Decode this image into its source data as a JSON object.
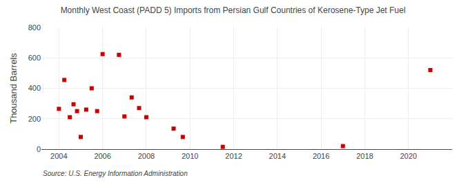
{
  "chart_data": {
    "type": "scatter",
    "title": "Monthly West Coast (PADD 5) Imports from Persian Gulf Countries of Kerosene-Type Jet Fuel",
    "ylabel": "Thousand Barrels",
    "source": "Source: U.S. Energy Information Administration",
    "x": [
      2004.0,
      2004.25,
      2004.5,
      2004.67,
      2004.83,
      2005.0,
      2005.25,
      2005.5,
      2005.75,
      2006.0,
      2006.75,
      2007.0,
      2007.33,
      2007.67,
      2008.0,
      2009.25,
      2009.67,
      2011.5,
      2017.0,
      2021.0
    ],
    "values": [
      265,
      455,
      210,
      295,
      250,
      80,
      260,
      400,
      250,
      625,
      620,
      215,
      340,
      270,
      210,
      135,
      80,
      15,
      20,
      520
    ],
    "color": "#cc0000",
    "marker": "square",
    "xlim": [
      2003.2,
      2022.0
    ],
    "xticks": [
      2004,
      2006,
      2008,
      2010,
      2012,
      2014,
      2016,
      2018,
      2020
    ],
    "ylim": [
      0,
      800
    ],
    "yticks": [
      0,
      200,
      400,
      600,
      800
    ],
    "grid": true
  }
}
